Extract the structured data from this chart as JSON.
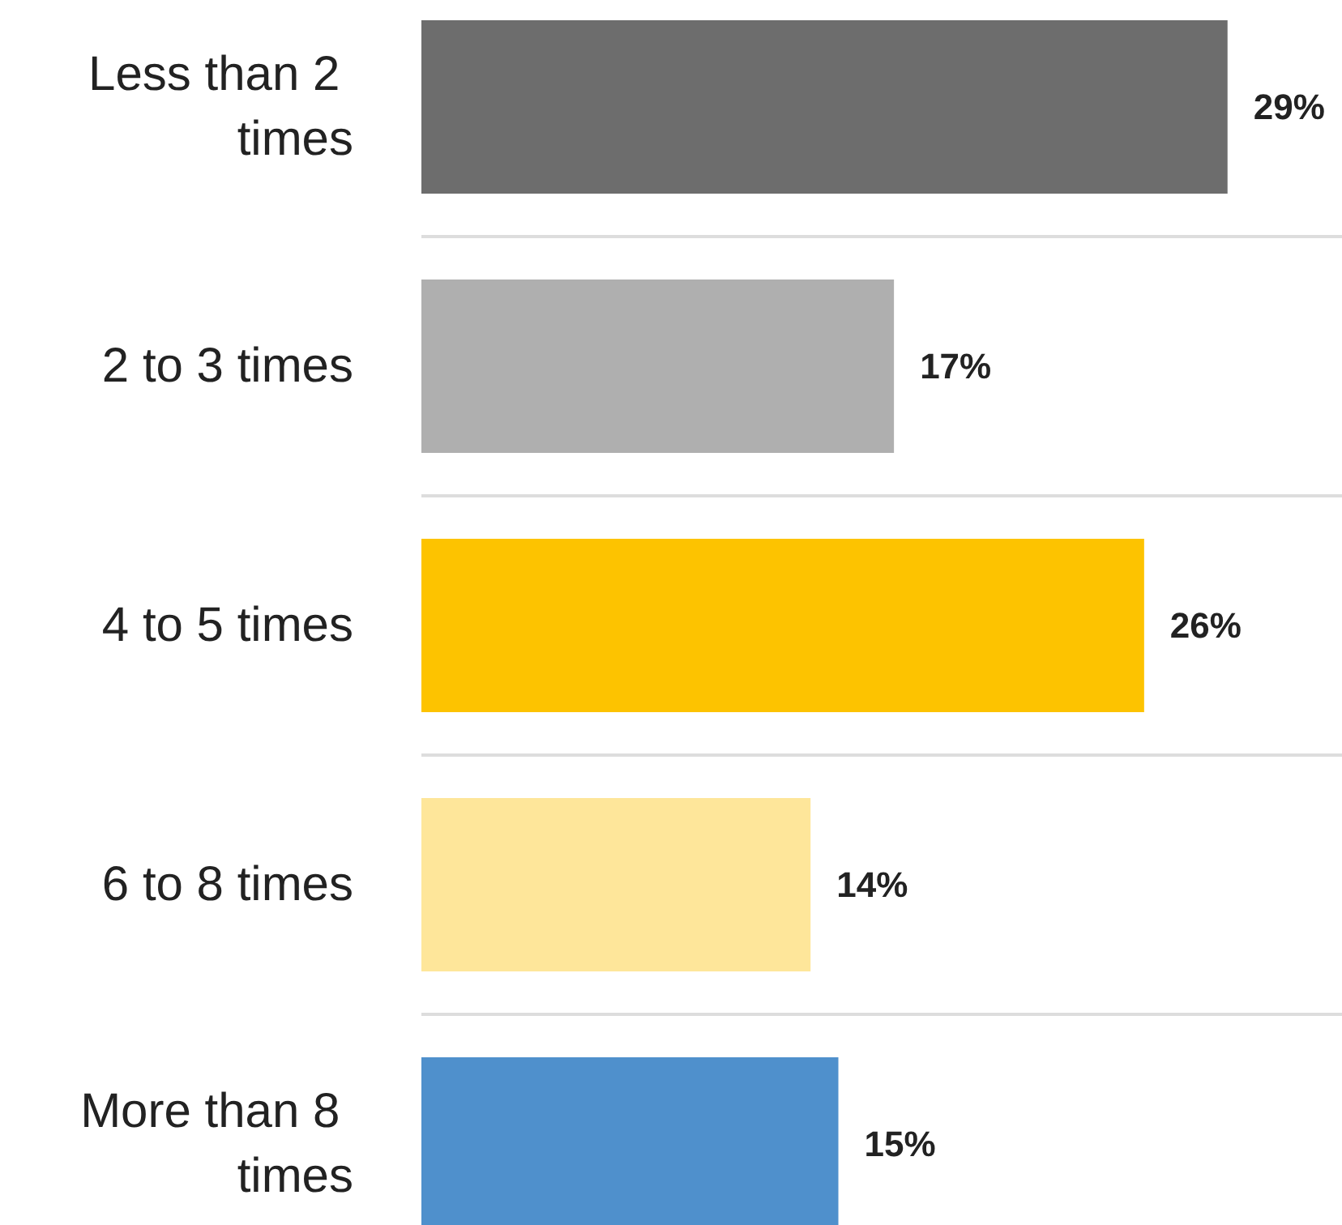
{
  "chart_data": {
    "type": "bar",
    "orientation": "horizontal",
    "categories": [
      "Less than 2 times",
      "2 to 3 times",
      "4 to 5 times",
      "6 to 8 times",
      "More than 8 times"
    ],
    "values": [
      29,
      17,
      26,
      14,
      15
    ],
    "colors": [
      "#6d6d6d",
      "#afafaf",
      "#fdc300",
      "#fee69a",
      "#4f90cc"
    ],
    "value_labels": [
      "29%",
      "17%",
      "26%",
      "14%",
      "15%"
    ],
    "grid": "y"
  }
}
